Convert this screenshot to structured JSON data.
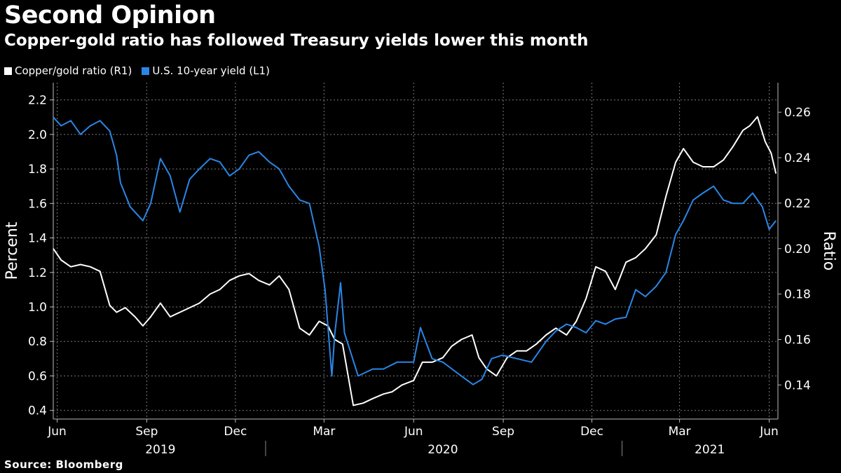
{
  "header": {
    "title": "Second Opinion",
    "subtitle": "Copper-gold ratio has followed Treasury yields lower this month"
  },
  "footer": {
    "source": "Source: Bloomberg"
  },
  "colors": {
    "background": "#000000",
    "copper_gold": "#ffffff",
    "yield": "#2a86e6",
    "grid": "#7a7a7a"
  },
  "chart_data": {
    "type": "line",
    "title": "Second Opinion",
    "subtitle": "Copper-gold ratio has followed Treasury yields lower this month",
    "ylabel_left": "Percent",
    "ylabel_right": "Ratio",
    "ylim_left": [
      0.35,
      2.3
    ],
    "ylim_right": [
      0.125,
      0.273
    ],
    "yticks_left": [
      "0.4",
      "0.6",
      "0.8",
      "1.0",
      "1.2",
      "1.4",
      "1.6",
      "1.8",
      "2.0",
      "2.2"
    ],
    "yticks_right": [
      "0.14",
      "0.16",
      "0.18",
      "0.20",
      "0.22",
      "0.24",
      "0.26"
    ],
    "xlim": [
      "2019-05-28",
      "2021-06-10"
    ],
    "xticks": [
      {
        "label": "Jun",
        "date": "2019-06-01"
      },
      {
        "label": "Sep",
        "date": "2019-09-01"
      },
      {
        "label": "Dec",
        "date": "2019-12-01"
      },
      {
        "label": "Mar",
        "date": "2020-03-01"
      },
      {
        "label": "Jun",
        "date": "2020-06-01"
      },
      {
        "label": "Sep",
        "date": "2020-09-01"
      },
      {
        "label": "Dec",
        "date": "2020-12-01"
      },
      {
        "label": "Mar",
        "date": "2021-03-01"
      },
      {
        "label": "Jun",
        "date": "2021-06-01"
      }
    ],
    "years": [
      {
        "label": "2019",
        "date": "2019-09-15"
      },
      {
        "label": "2020",
        "date": "2020-07-01"
      },
      {
        "label": "2021",
        "date": "2021-04-01"
      }
    ],
    "year_separators": [
      "2020-01-01",
      "2021-01-01"
    ],
    "grid": true,
    "legend_position": "top-left",
    "series": [
      {
        "name": "Copper/gold ratio (R1)",
        "axis": "right",
        "color": "#ffffff",
        "x": [
          "2019-05-28",
          "2019-06-05",
          "2019-06-15",
          "2019-06-25",
          "2019-07-05",
          "2019-07-15",
          "2019-07-25",
          "2019-08-01",
          "2019-08-10",
          "2019-08-20",
          "2019-08-28",
          "2019-09-05",
          "2019-09-15",
          "2019-09-25",
          "2019-10-05",
          "2019-10-15",
          "2019-10-25",
          "2019-11-05",
          "2019-11-15",
          "2019-11-25",
          "2019-12-05",
          "2019-12-15",
          "2019-12-25",
          "2020-01-05",
          "2020-01-15",
          "2020-01-25",
          "2020-02-05",
          "2020-02-15",
          "2020-02-25",
          "2020-03-05",
          "2020-03-12",
          "2020-03-20",
          "2020-03-31",
          "2020-04-10",
          "2020-04-20",
          "2020-05-01",
          "2020-05-10",
          "2020-05-20",
          "2020-06-01",
          "2020-06-10",
          "2020-06-20",
          "2020-07-01",
          "2020-07-10",
          "2020-07-20",
          "2020-07-31",
          "2020-08-07",
          "2020-08-15",
          "2020-08-25",
          "2020-09-05",
          "2020-09-15",
          "2020-09-25",
          "2020-10-05",
          "2020-10-15",
          "2020-10-25",
          "2020-11-05",
          "2020-11-15",
          "2020-11-25",
          "2020-12-05",
          "2020-12-15",
          "2020-12-25",
          "2021-01-05",
          "2021-01-15",
          "2021-01-25",
          "2021-02-05",
          "2021-02-15",
          "2021-02-25",
          "2021-03-05",
          "2021-03-15",
          "2021-03-25",
          "2021-04-05",
          "2021-04-15",
          "2021-04-25",
          "2021-05-05",
          "2021-05-12",
          "2021-05-20",
          "2021-05-28",
          "2021-06-03",
          "2021-06-08"
        ],
        "values": [
          0.2,
          0.195,
          0.192,
          0.193,
          0.192,
          0.19,
          0.175,
          0.172,
          0.174,
          0.17,
          0.166,
          0.17,
          0.176,
          0.17,
          0.172,
          0.174,
          0.176,
          0.18,
          0.182,
          0.186,
          0.188,
          0.189,
          0.186,
          0.184,
          0.188,
          0.182,
          0.165,
          0.162,
          0.168,
          0.166,
          0.16,
          0.158,
          0.131,
          0.132,
          0.134,
          0.136,
          0.137,
          0.14,
          0.142,
          0.15,
          0.15,
          0.152,
          0.157,
          0.16,
          0.162,
          0.152,
          0.147,
          0.144,
          0.152,
          0.155,
          0.155,
          0.158,
          0.162,
          0.165,
          0.162,
          0.168,
          0.178,
          0.192,
          0.19,
          0.182,
          0.194,
          0.196,
          0.2,
          0.206,
          0.223,
          0.238,
          0.244,
          0.238,
          0.236,
          0.236,
          0.239,
          0.245,
          0.252,
          0.254,
          0.258,
          0.247,
          0.242,
          0.233
        ]
      },
      {
        "name": "U.S. 10-year yield (L1)",
        "axis": "left",
        "color": "#2a86e6",
        "x": [
          "2019-05-28",
          "2019-06-05",
          "2019-06-15",
          "2019-06-25",
          "2019-07-05",
          "2019-07-15",
          "2019-07-25",
          "2019-08-01",
          "2019-08-05",
          "2019-08-15",
          "2019-08-28",
          "2019-09-05",
          "2019-09-15",
          "2019-09-25",
          "2019-10-05",
          "2019-10-15",
          "2019-10-25",
          "2019-11-05",
          "2019-11-15",
          "2019-11-25",
          "2019-12-05",
          "2019-12-15",
          "2019-12-25",
          "2020-01-05",
          "2020-01-15",
          "2020-01-25",
          "2020-02-05",
          "2020-02-15",
          "2020-02-25",
          "2020-03-02",
          "2020-03-09",
          "2020-03-12",
          "2020-03-18",
          "2020-03-22",
          "2020-04-05",
          "2020-04-20",
          "2020-05-01",
          "2020-05-15",
          "2020-06-01",
          "2020-06-08",
          "2020-06-20",
          "2020-07-01",
          "2020-07-15",
          "2020-08-01",
          "2020-08-10",
          "2020-08-20",
          "2020-08-31",
          "2020-09-15",
          "2020-09-30",
          "2020-10-15",
          "2020-10-25",
          "2020-11-05",
          "2020-11-15",
          "2020-11-25",
          "2020-12-05",
          "2020-12-15",
          "2020-12-25",
          "2021-01-05",
          "2021-01-15",
          "2021-01-25",
          "2021-02-05",
          "2021-02-15",
          "2021-02-25",
          "2021-03-05",
          "2021-03-15",
          "2021-03-25",
          "2021-04-05",
          "2021-04-15",
          "2021-04-25",
          "2021-05-05",
          "2021-05-15",
          "2021-05-25",
          "2021-06-01",
          "2021-06-08"
        ],
        "values": [
          2.1,
          2.05,
          2.08,
          2.0,
          2.05,
          2.08,
          2.02,
          1.88,
          1.72,
          1.58,
          1.5,
          1.6,
          1.86,
          1.76,
          1.55,
          1.74,
          1.8,
          1.86,
          1.84,
          1.76,
          1.8,
          1.88,
          1.9,
          1.84,
          1.8,
          1.7,
          1.62,
          1.6,
          1.35,
          1.1,
          0.6,
          0.84,
          1.14,
          0.85,
          0.6,
          0.64,
          0.64,
          0.68,
          0.68,
          0.88,
          0.7,
          0.68,
          0.62,
          0.55,
          0.58,
          0.7,
          0.72,
          0.7,
          0.68,
          0.8,
          0.86,
          0.9,
          0.88,
          0.85,
          0.92,
          0.9,
          0.93,
          0.94,
          1.1,
          1.06,
          1.12,
          1.2,
          1.42,
          1.5,
          1.62,
          1.66,
          1.7,
          1.62,
          1.6,
          1.6,
          1.66,
          1.58,
          1.45,
          1.5
        ]
      }
    ]
  }
}
